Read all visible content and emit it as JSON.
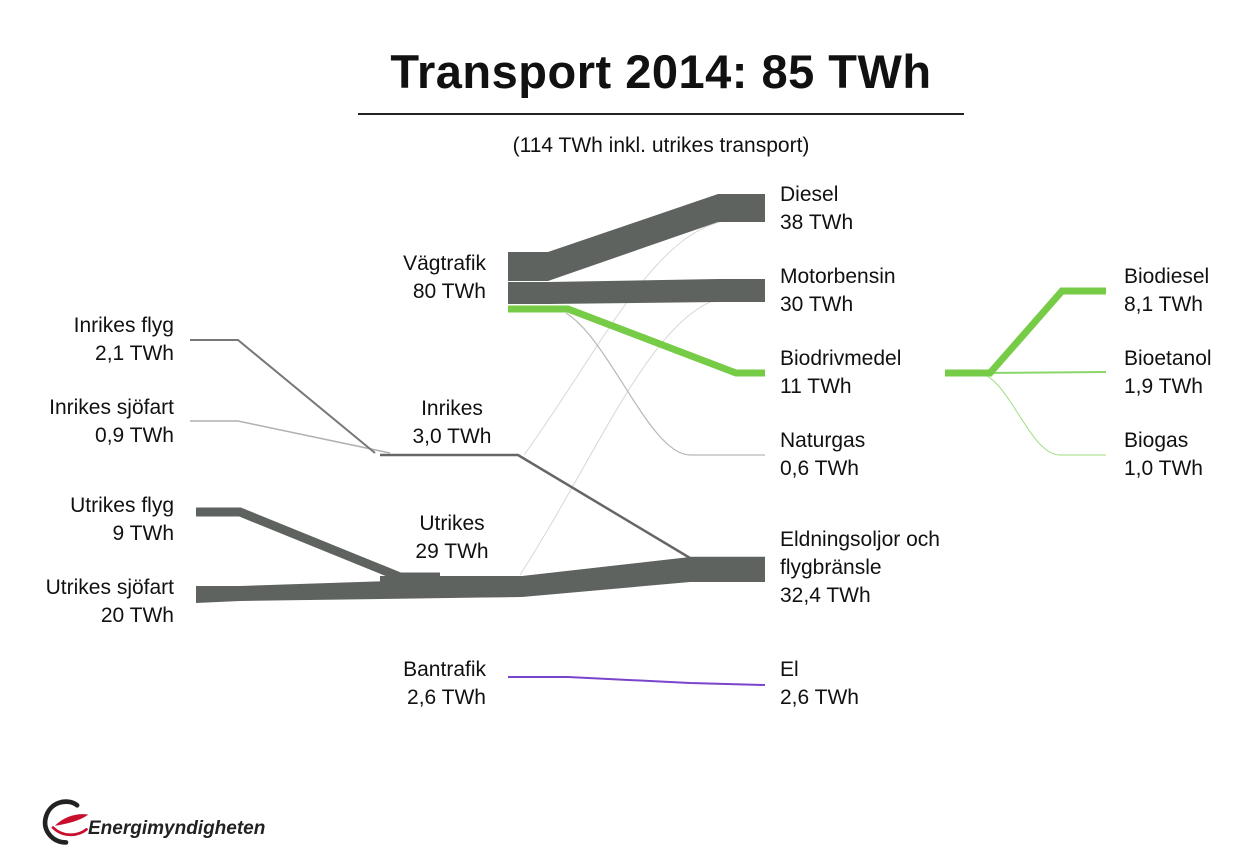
{
  "title": "Transport 2014: 85 TWh",
  "subtitle": "(114 TWh inkl. utrikes transport)",
  "colors": {
    "fossil": "#5f6360",
    "bio": "#77cc47",
    "el": "#7b44cc",
    "thin": "#9a9a9a"
  },
  "nodes": {
    "inrikes_flyg": {
      "name": "Inrikes flyg",
      "value": "2,1 TWh"
    },
    "inrikes_sjofart": {
      "name": "Inrikes sjöfart",
      "value": "0,9 TWh"
    },
    "utrikes_flyg": {
      "name": "Utrikes flyg",
      "value": "9 TWh"
    },
    "utrikes_sjofart": {
      "name": "Utrikes sjöfart",
      "value": "20 TWh"
    },
    "vagtrafik": {
      "name": "Vägtrafik",
      "value": "80 TWh"
    },
    "inrikes": {
      "name": "Inrikes",
      "value": "3,0 TWh"
    },
    "utrikes": {
      "name": "Utrikes",
      "value": "29 TWh"
    },
    "bantrafik": {
      "name": "Bantrafik",
      "value": "2,6 TWh"
    },
    "diesel": {
      "name": "Diesel",
      "value": "38 TWh"
    },
    "motorbensin": {
      "name": "Motorbensin",
      "value": "30 TWh"
    },
    "biodrivmedel": {
      "name": "Biodrivmedel",
      "value": "11 TWh"
    },
    "naturgas": {
      "name": "Naturgas",
      "value": "0,6 TWh"
    },
    "eldningsoljor": {
      "name1": "Eldningsoljor och",
      "name2": "flygbränsle",
      "value": "32,4 TWh"
    },
    "el": {
      "name": "El",
      "value": "2,6 TWh"
    },
    "biodiesel": {
      "name": "Biodiesel",
      "value": "8,1 TWh"
    },
    "bioetanol": {
      "name": "Bioetanol",
      "value": "1,9 TWh"
    },
    "biogas": {
      "name": "Biogas",
      "value": "1,0 TWh"
    }
  },
  "logo": {
    "text": "Energimyndigheten"
  }
}
